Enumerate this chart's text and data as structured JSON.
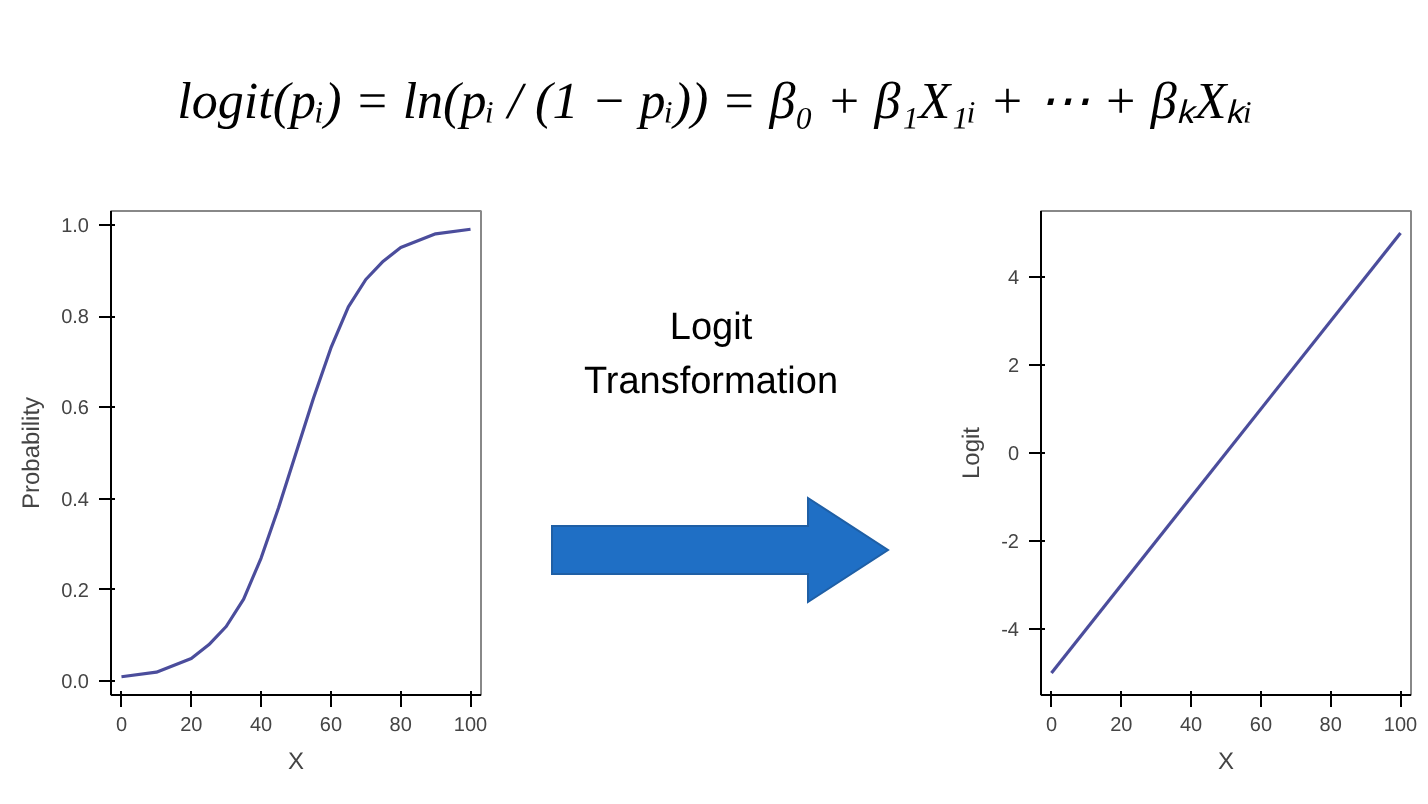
{
  "chart_data": [
    {
      "type": "other",
      "annotations": [
        "logit(pᵢ) = ln(pᵢ / (1 − pᵢ)) = β₀ + β₁X₁ᵢ + ⋯ + βₖXₖᵢ",
        "Logit Transformation"
      ]
    },
    {
      "type": "line",
      "xlabel": "X",
      "ylabel": "Probability",
      "xlim": [
        -3,
        103
      ],
      "ylim": [
        -0.03,
        1.03
      ],
      "xticks": [
        0,
        20,
        40,
        60,
        80,
        100
      ],
      "yticks": [
        {
          "value": 0,
          "label": "0.0"
        },
        {
          "value": 0.2,
          "label": "0.2"
        },
        {
          "value": 0.4,
          "label": "0.4"
        },
        {
          "value": 0.6,
          "label": "0.6"
        },
        {
          "value": 0.8,
          "label": "0.8"
        },
        {
          "value": 1,
          "label": "1.0"
        }
      ],
      "x": [
        0,
        10,
        20,
        25,
        30,
        35,
        40,
        45,
        50,
        55,
        60,
        65,
        70,
        75,
        80,
        90,
        100
      ],
      "series": [
        {
          "color": "#4b4d9c",
          "values": [
            0.01,
            0.02,
            0.05,
            0.08,
            0.12,
            0.18,
            0.27,
            0.38,
            0.5,
            0.62,
            0.73,
            0.82,
            0.88,
            0.92,
            0.95,
            0.98,
            0.99
          ]
        }
      ]
    },
    {
      "type": "line",
      "xlabel": "X",
      "ylabel": "Logit",
      "xlim": [
        -3,
        103
      ],
      "ylim": [
        -5.5,
        5.5
      ],
      "xticks": [
        0,
        20,
        40,
        60,
        80,
        100
      ],
      "yticks": [
        -4,
        -2,
        0,
        2,
        4
      ],
      "x": [
        0,
        100
      ],
      "series": [
        {
          "color": "#4b4d9c",
          "values": [
            -5,
            5
          ]
        }
      ]
    }
  ]
}
